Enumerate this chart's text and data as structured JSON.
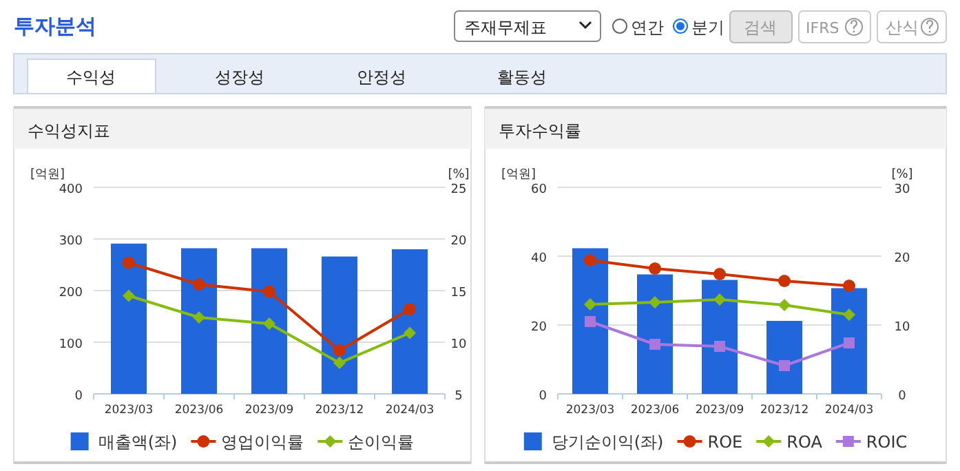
{
  "chart_data": [
    {
      "type": "bar",
      "title": "수익성지표",
      "ylabel": "[억원]",
      "y2label": "[%]",
      "categories": [
        "2023/03",
        "2023/06",
        "2023/09",
        "2023/12",
        "2024/03"
      ],
      "series": [
        {
          "name": "매출액(좌)",
          "color": "#2167db",
          "values": [
            291,
            282,
            282,
            266,
            280
          ]
        },
        {
          "name": "영업이익률",
          "type": "line",
          "axis": "y2",
          "marker": "circle",
          "color": "#cc3300",
          "values": [
            17.7,
            15.6,
            14.9,
            9.2,
            13.2
          ]
        },
        {
          "name": "순이익률",
          "type": "line",
          "axis": "y2",
          "marker": "diamond",
          "color": "#88bb11",
          "values": [
            14.5,
            12.4,
            11.8,
            8.0,
            10.9
          ]
        }
      ],
      "ylim": [
        0,
        400
      ],
      "yticks": [
        0,
        100,
        200,
        300,
        400
      ],
      "y2lim": [
        5,
        25
      ],
      "y2ticks": [
        5,
        10,
        15,
        20,
        25
      ],
      "grid": "y",
      "legend": "bottom",
      "annotations": [
        "투자분석",
        "주재무제표",
        "연간",
        "분기",
        "검색",
        "IFRS",
        "산식",
        "수익성",
        "성장성",
        "안정성",
        "활동성"
      ]
    },
    {
      "type": "bar",
      "title": "투자수익률",
      "ylabel": "[억원]",
      "y2label": "[%]",
      "categories": [
        "2023/03",
        "2023/06",
        "2023/09",
        "2023/12",
        "2024/03"
      ],
      "series": [
        {
          "name": "당기순이익(좌)",
          "color": "#2167db",
          "values": [
            42.3,
            34.7,
            33.1,
            21.2,
            30.7
          ]
        },
        {
          "name": "ROE",
          "type": "line",
          "axis": "y2",
          "marker": "circle",
          "color": "#cc3300",
          "values": [
            19.4,
            18.2,
            17.4,
            16.4,
            15.7
          ]
        },
        {
          "name": "ROA",
          "type": "line",
          "axis": "y2",
          "marker": "diamond",
          "color": "#88bb11",
          "values": [
            13.0,
            13.3,
            13.7,
            12.9,
            11.5
          ]
        },
        {
          "name": "ROIC",
          "type": "line",
          "axis": "y2",
          "marker": "square",
          "color": "#aa77dd",
          "values": [
            10.5,
            7.2,
            6.9,
            4.1,
            7.4
          ]
        }
      ],
      "ylim": [
        0,
        60
      ],
      "yticks": [
        0,
        20,
        40,
        60
      ],
      "y2lim": [
        0,
        30
      ],
      "y2ticks": [
        0,
        10,
        20,
        30
      ],
      "grid": "y",
      "legend": "bottom"
    }
  ]
}
